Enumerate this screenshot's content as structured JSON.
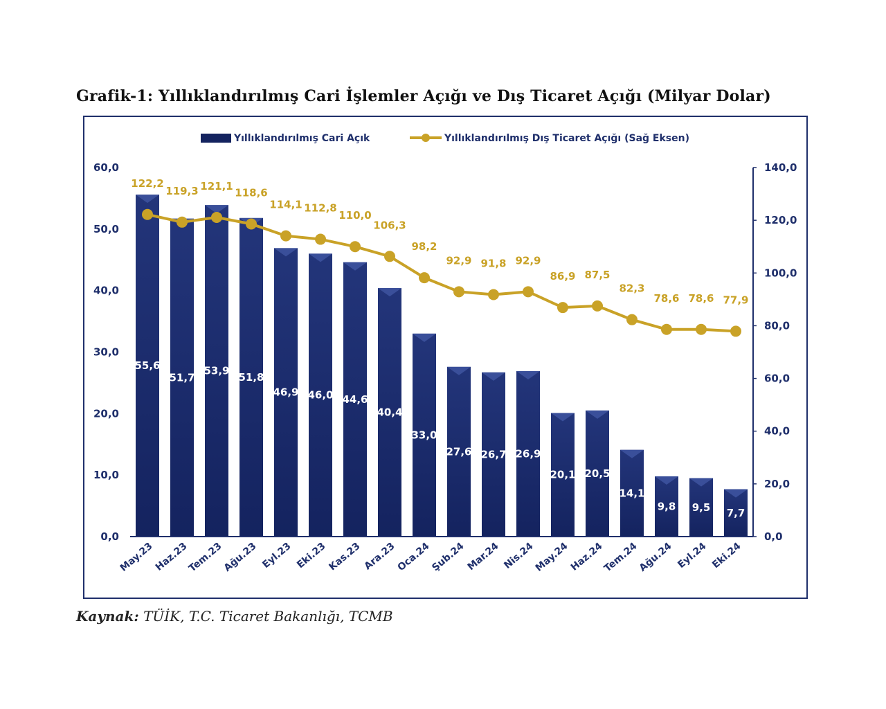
{
  "title": {
    "label": "Grafik-1:",
    "text": "Yıllıklandırılmış Cari İşlemler Açığı ve Dış Ticaret Açığı (Milyar Dolar)"
  },
  "source": {
    "label": "Kaynak:",
    "text": "TÜİK, T.C. Ticaret Bakanlığı, TCMB"
  },
  "colors": {
    "bar": "#14235f",
    "bar_top": "#3a4f9a",
    "line": "#c9a227",
    "axis": "#1f2f6b"
  },
  "chart_data": {
    "type": "bar",
    "categories": [
      "May.23",
      "Haz.23",
      "Tem.23",
      "Ağu.23",
      "Eyl.23",
      "Eki.23",
      "Kas.23",
      "Ara.23",
      "Oca.24",
      "Şub.24",
      "Mar.24",
      "Nis.24",
      "May.24",
      "Haz.24",
      "Tem.24",
      "Ağu.24",
      "Eyl.24",
      "Eki.24"
    ],
    "series": [
      {
        "name": "Yıllıklandırılmış Cari Açık",
        "type": "bar",
        "axis": "left",
        "values": [
          55.6,
          51.7,
          53.9,
          51.8,
          46.9,
          46.0,
          44.6,
          40.4,
          33.0,
          27.6,
          26.7,
          26.9,
          20.1,
          20.5,
          14.1,
          9.8,
          9.5,
          7.7
        ],
        "labels": [
          "55,6",
          "51,7",
          "53,9",
          "51,8",
          "46,9",
          "46,0",
          "44,6",
          "40,4",
          "33,0",
          "27,6",
          "26,7",
          "26,9",
          "20,1",
          "20,5",
          "14,1",
          "9,8",
          "9,5",
          "7,7"
        ]
      },
      {
        "name": "Yıllıklandırılmış Dış Ticaret Açığı (Sağ Eksen)",
        "type": "line",
        "axis": "right",
        "values": [
          122.2,
          119.3,
          121.1,
          118.6,
          114.1,
          112.8,
          110.0,
          106.3,
          98.2,
          92.9,
          91.8,
          92.9,
          86.9,
          87.5,
          82.3,
          78.6,
          78.6,
          77.9
        ],
        "labels": [
          "122,2",
          "119,3",
          "121,1",
          "118,6",
          "114,1",
          "112,8",
          "110,0",
          "106,3",
          "98,2",
          "92,9",
          "91,8",
          "92,9",
          "86,9",
          "87,5",
          "82,3",
          "78,6",
          "78,6",
          "77,9"
        ]
      }
    ],
    "left_axis": {
      "min": 0,
      "max": 60,
      "ticks": [
        "0,0",
        "10,0",
        "20,0",
        "30,0",
        "40,0",
        "50,0",
        "60,0"
      ]
    },
    "right_axis": {
      "min": 0,
      "max": 140,
      "ticks": [
        "0,0",
        "20,0",
        "40,0",
        "60,0",
        "80,0",
        "100,0",
        "120,0",
        "140,0"
      ]
    },
    "legend_position": "top-center",
    "grid": false
  }
}
